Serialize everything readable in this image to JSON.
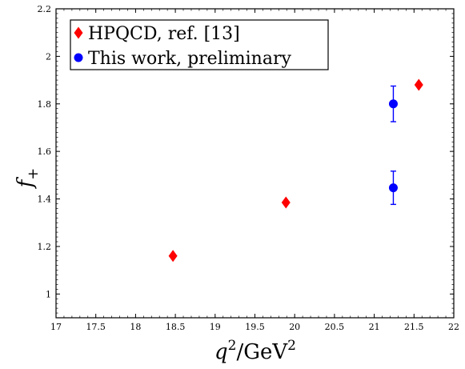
{
  "chart_data": {
    "type": "scatter",
    "title": "",
    "xlabel": {
      "base": "q",
      "sup1": "2",
      "mid": "/GeV",
      "sup2": "2"
    },
    "ylabel": {
      "base": "f",
      "sub": "+"
    },
    "xlim": [
      17,
      22
    ],
    "ylim": [
      0.9,
      2.2
    ],
    "grid": false,
    "legend_position": "top-left",
    "x_ticks": [
      "17",
      "17.5",
      "18",
      "18.5",
      "19",
      "19.5",
      "20",
      "20.5",
      "21",
      "21.5",
      "22"
    ],
    "y_ticks": [
      "1",
      "1.2",
      "1.4",
      "1.6",
      "1.8",
      "2",
      "2.2"
    ],
    "series": [
      {
        "name": "HPQCD, ref. [13]",
        "marker": "diamond",
        "color": "#ff0000",
        "points": [
          {
            "x": 18.47,
            "y": 1.16
          },
          {
            "x": 19.89,
            "y": 1.385
          },
          {
            "x": 21.56,
            "y": 1.88
          }
        ]
      },
      {
        "name": "This work, preliminary",
        "marker": "circle",
        "color": "#0000ff",
        "points": [
          {
            "x": 21.24,
            "y": 1.8,
            "err": 0.075
          },
          {
            "x": 21.24,
            "y": 1.447,
            "err": 0.07
          }
        ]
      }
    ]
  }
}
